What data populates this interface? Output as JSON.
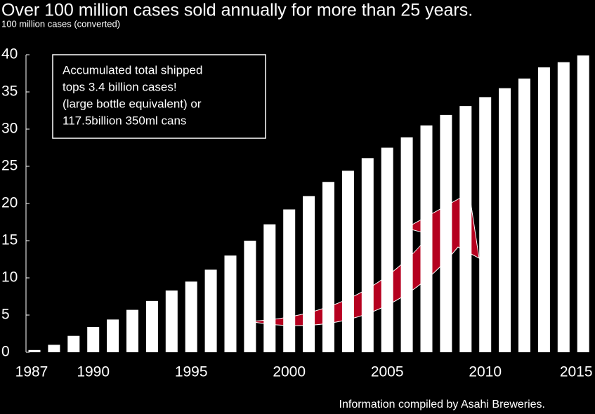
{
  "chart_data": {
    "type": "bar",
    "title": "Over 100 million cases sold annually for more than 25 years.",
    "y_label": "100 million cases (converted)",
    "annotation": [
      "Accumulated total shipped",
      "tops 3.4 billion cases!",
      "(large bottle equivalent) or",
      "117.5billion 350ml cans"
    ],
    "source": "Information compiled by Asahi Breweries.",
    "categories": [
      "1987",
      null,
      null,
      "1990",
      null,
      null,
      null,
      null,
      "1995",
      null,
      null,
      null,
      null,
      "2000",
      null,
      null,
      null,
      null,
      "2005",
      null,
      null,
      null,
      null,
      "2010",
      null,
      null,
      null,
      null,
      "2015"
    ],
    "values": [
      0.3,
      1.0,
      2.2,
      3.4,
      4.4,
      5.7,
      6.9,
      8.3,
      9.5,
      11.1,
      13.0,
      15.0,
      17.2,
      19.2,
      21.0,
      22.9,
      24.4,
      26.1,
      27.5,
      28.9,
      30.5,
      31.9,
      33.1,
      34.3,
      35.5,
      36.8,
      38.3,
      39.0,
      39.9
    ],
    "color": "#ffffff",
    "ylim": [
      0,
      40
    ],
    "yticks": [
      0,
      5,
      10,
      15,
      20,
      25,
      30,
      35,
      40
    ],
    "grid": false
  }
}
